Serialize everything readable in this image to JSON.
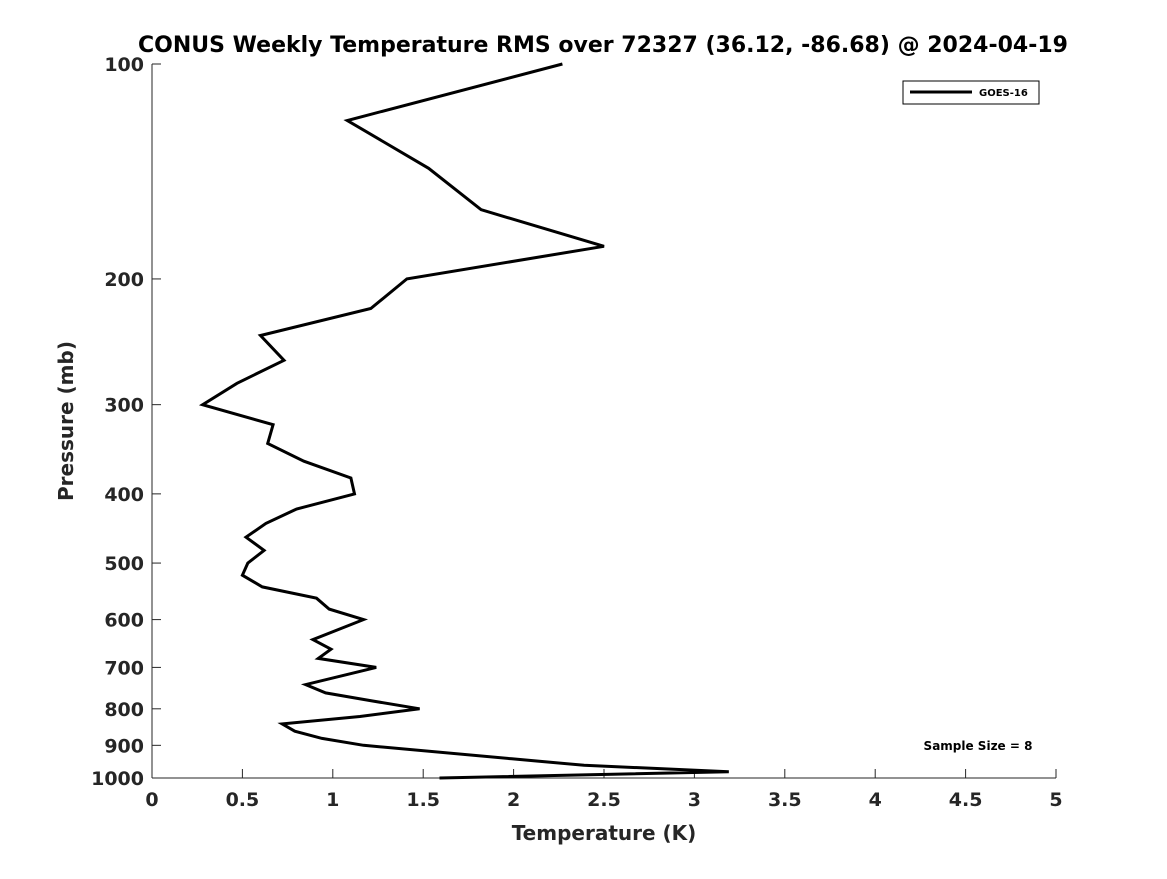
{
  "chart_data": {
    "type": "line",
    "title": "CONUS Weekly Temperature RMS over 72327 (36.12, -86.68) @ 2024-04-19",
    "xlabel": "Temperature (K)",
    "ylabel": "Pressure (mb)",
    "xlim": [
      0,
      5
    ],
    "ylim": [
      100,
      1000
    ],
    "yscale": "log",
    "yreversed": true,
    "grid": false,
    "xticks": [
      0,
      0.5,
      1,
      1.5,
      2,
      2.5,
      3,
      3.5,
      4,
      4.5,
      5
    ],
    "xtick_labels": [
      "0",
      "0.5",
      "1",
      "1.5",
      "2",
      "2.5",
      "3",
      "3.5",
      "4",
      "4.5",
      "5"
    ],
    "yticks": [
      100,
      200,
      300,
      400,
      500,
      600,
      700,
      800,
      900,
      1000
    ],
    "ytick_labels": [
      "100",
      "200",
      "300",
      "400",
      "500",
      "600",
      "700",
      "800",
      "900",
      "1000"
    ],
    "legend": {
      "placement": "top-right",
      "entries": [
        "GOES-16"
      ]
    },
    "annotation": "Sample Size = 8",
    "series": [
      {
        "name": "GOES-16",
        "color": "#000000",
        "pressure": [
          100,
          120,
          140,
          160,
          180,
          200,
          220,
          240,
          260,
          280,
          300,
          320,
          340,
          360,
          380,
          400,
          420,
          440,
          460,
          480,
          500,
          520,
          540,
          560,
          580,
          600,
          640,
          660,
          680,
          700,
          740,
          760,
          780,
          800,
          820,
          840,
          860,
          880,
          900,
          940,
          960,
          980,
          1000
        ],
        "temperature": [
          2.27,
          1.08,
          1.53,
          1.82,
          2.5,
          1.41,
          1.21,
          0.6,
          0.73,
          0.47,
          0.28,
          0.67,
          0.64,
          0.84,
          1.1,
          1.12,
          0.8,
          0.63,
          0.52,
          0.62,
          0.53,
          0.5,
          0.61,
          0.91,
          0.98,
          1.17,
          0.89,
          0.99,
          0.92,
          1.24,
          0.85,
          0.96,
          1.22,
          1.48,
          1.15,
          0.72,
          0.79,
          0.94,
          1.17,
          1.99,
          2.39,
          3.19,
          1.59
        ]
      }
    ]
  }
}
